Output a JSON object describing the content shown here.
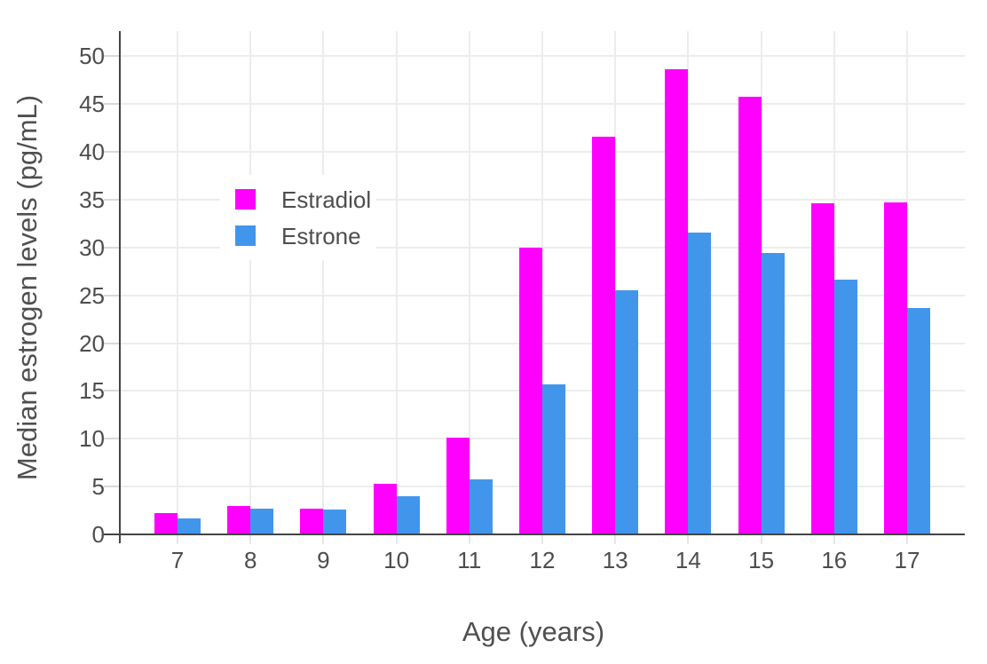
{
  "chart_data": {
    "type": "bar",
    "title": "",
    "xlabel": "Age (years)",
    "ylabel": "Median estrogen levels (pg/mL)",
    "categories": [
      7,
      8,
      9,
      10,
      11,
      12,
      13,
      14,
      15,
      16,
      17
    ],
    "series": [
      {
        "name": "Estradiol",
        "color": "#ff00ff",
        "values": [
          2.2,
          3.0,
          2.7,
          5.3,
          10.1,
          30.0,
          41.6,
          48.6,
          45.8,
          34.6,
          34.7
        ]
      },
      {
        "name": "Estrone",
        "color": "#4196ec",
        "values": [
          1.7,
          2.7,
          2.6,
          4.0,
          5.8,
          15.7,
          25.5,
          31.6,
          29.4,
          26.6,
          23.7
        ]
      }
    ],
    "y_ticks": [
      0,
      5,
      10,
      15,
      20,
      25,
      30,
      35,
      40,
      45,
      50
    ],
    "ylim": [
      0,
      52.6
    ],
    "grid": true,
    "legend_position": "upper-left-inside"
  },
  "style": {
    "bar_color_estradiol": "#ff00ff",
    "bar_color_estrone": "#4196ec",
    "axis_line_color": "#444444",
    "gridline_color": "#ececec",
    "text_color": "#4d4d4d",
    "background_color": "#ffffff"
  }
}
